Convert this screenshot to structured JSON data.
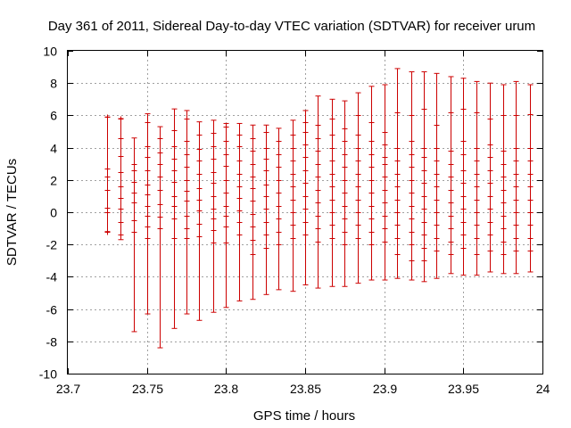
{
  "chart_data": {
    "type": "scatter",
    "title": "Day 361 of 2011, Sidereal Day-to-day VTEC variation (SDTVAR) for receiver urum",
    "xlabel": "GPS time / hours",
    "ylabel": "SDTVAR / TECUs",
    "xlim": [
      23.7,
      24.0
    ],
    "ylim": [
      -10,
      10
    ],
    "x_ticks": [
      "23.7",
      "23.75",
      "23.8",
      "23.85",
      "23.9",
      "23.95",
      "24"
    ],
    "x_tick_values": [
      23.7,
      23.75,
      23.8,
      23.85,
      23.9,
      23.95,
      24.0
    ],
    "y_ticks": [
      "-10",
      "-8",
      "-6",
      "-4",
      "-2",
      "0",
      "2",
      "4",
      "6",
      "8",
      "10"
    ],
    "y_tick_values": [
      -10,
      -8,
      -6,
      -4,
      -2,
      0,
      2,
      4,
      6,
      8,
      10
    ],
    "grid": true,
    "color": "#cc0000",
    "series": [
      {
        "name": "SDTVAR",
        "points": [
          {
            "x": 23.725,
            "lo": -1.2,
            "hi": 5.9,
            "vals": [
              -1.2,
              0.0,
              0.3,
              1.4,
              2.2,
              2.7,
              5.9
            ]
          },
          {
            "x": 23.733,
            "lo": -1.7,
            "hi": 5.8,
            "vals": [
              -1.4,
              -0.6,
              0.2,
              0.9,
              1.6,
              2.5,
              3.5,
              4.6,
              5.8
            ]
          },
          {
            "x": 23.742,
            "lo": -7.4,
            "hi": 4.6,
            "vals": [
              -1.2,
              -0.5,
              0.6,
              1.2,
              1.9,
              2.6,
              3.0
            ]
          },
          {
            "x": 23.75,
            "lo": -6.3,
            "hi": 6.1,
            "vals": [
              -1.6,
              -0.9,
              -0.2,
              0.4,
              1.1,
              1.7,
              2.6,
              3.4,
              4.1,
              5.6
            ]
          },
          {
            "x": 23.758,
            "lo": -8.4,
            "hi": 5.3,
            "vals": [
              -1.0,
              -0.3,
              0.5,
              1.4,
              2.2,
              3.0,
              3.7,
              4.6
            ]
          },
          {
            "x": 23.767,
            "lo": -7.2,
            "hi": 6.4,
            "vals": [
              -1.6,
              -0.4,
              0.4,
              1.0,
              1.9,
              2.6,
              3.3,
              4.1,
              5.1
            ]
          },
          {
            "x": 23.775,
            "lo": -6.3,
            "hi": 6.3,
            "vals": [
              -1.6,
              -1.0,
              -0.2,
              0.7,
              1.3,
              2.0,
              2.8,
              3.6,
              4.4,
              5.8
            ]
          },
          {
            "x": 23.783,
            "lo": -6.7,
            "hi": 5.6,
            "vals": [
              -1.5,
              -0.7,
              0.1,
              0.8,
              1.5,
              2.4,
              3.2,
              3.9,
              4.8
            ]
          },
          {
            "x": 23.792,
            "lo": -6.2,
            "hi": 5.7,
            "vals": [
              -1.9,
              -1.1,
              -0.4,
              0.2,
              1.0,
              1.8,
              2.5,
              3.3,
              4.1,
              4.9
            ]
          },
          {
            "x": 23.8,
            "lo": -5.9,
            "hi": 5.5,
            "vals": [
              -1.9,
              -0.9,
              -0.2,
              0.4,
              1.2,
              2.0,
              2.9,
              3.6,
              4.4,
              5.3
            ]
          },
          {
            "x": 23.808,
            "lo": -5.5,
            "hi": 5.5,
            "vals": [
              -1.4,
              -0.6,
              0.1,
              0.9,
              1.6,
              2.4,
              3.2,
              4.1,
              4.8
            ]
          },
          {
            "x": 23.817,
            "lo": -5.4,
            "hi": 5.4,
            "vals": [
              -2.6,
              -1.7,
              -0.9,
              -0.1,
              0.7,
              1.5,
              2.2,
              3.0,
              3.8,
              4.6
            ]
          },
          {
            "x": 23.825,
            "lo": -5.1,
            "hi": 5.4,
            "vals": [
              -2.2,
              -1.4,
              -0.6,
              0.2,
              1.0,
              1.7,
              2.6,
              3.3,
              4.0,
              5.0
            ]
          },
          {
            "x": 23.833,
            "lo": -4.8,
            "hi": 5.2,
            "vals": [
              -2.0,
              -1.2,
              -0.4,
              0.4,
              1.2,
              2.0,
              2.8,
              3.6,
              4.4
            ]
          },
          {
            "x": 23.842,
            "lo": -4.9,
            "hi": 5.7,
            "vals": [
              -1.6,
              -0.8,
              0.0,
              0.8,
              1.6,
              2.4,
              3.2,
              4.0,
              4.8
            ]
          },
          {
            "x": 23.85,
            "lo": -4.5,
            "hi": 6.3,
            "vals": [
              -1.4,
              -0.6,
              0.2,
              1.0,
              1.8,
              2.6,
              3.4,
              4.2,
              5.0,
              5.6
            ]
          },
          {
            "x": 23.858,
            "lo": -4.7,
            "hi": 7.2,
            "vals": [
              -1.8,
              -1.0,
              -0.2,
              0.6,
              1.4,
              2.2,
              3.0,
              3.8,
              4.6,
              5.4
            ]
          },
          {
            "x": 23.867,
            "lo": -4.6,
            "hi": 7.0,
            "vals": [
              -1.6,
              -0.8,
              0.0,
              0.8,
              1.6,
              2.4,
              3.2,
              4.0,
              4.8,
              5.8
            ]
          },
          {
            "x": 23.875,
            "lo": -4.6,
            "hi": 6.9,
            "vals": [
              -2.0,
              -1.2,
              -0.4,
              0.4,
              1.2,
              2.0,
              2.8,
              3.6,
              4.4,
              5.2
            ]
          },
          {
            "x": 23.883,
            "lo": -4.4,
            "hi": 7.4,
            "vals": [
              -1.6,
              -0.8,
              0.0,
              0.8,
              1.6,
              2.4,
              3.2,
              4.0,
              4.8,
              6.0
            ]
          },
          {
            "x": 23.892,
            "lo": -4.2,
            "hi": 7.8,
            "vals": [
              -2.0,
              -1.2,
              -0.4,
              0.4,
              1.2,
              2.0,
              2.8,
              3.6,
              4.4,
              5.6
            ]
          },
          {
            "x": 23.9,
            "lo": -4.2,
            "hi": 7.9,
            "vals": [
              -1.8,
              -1.0,
              -0.2,
              0.6,
              1.4,
              2.2,
              3.0,
              3.4,
              4.2,
              5.0
            ]
          },
          {
            "x": 23.908,
            "lo": -4.1,
            "hi": 8.9,
            "vals": [
              -2.6,
              -1.6,
              -0.8,
              0.0,
              0.8,
              1.6,
              2.4,
              3.2,
              4.0,
              6.2
            ]
          },
          {
            "x": 23.917,
            "lo": -4.2,
            "hi": 8.7,
            "vals": [
              -3.0,
              -2.0,
              -1.2,
              -0.4,
              0.4,
              1.2,
              2.0,
              2.8,
              3.6,
              4.4,
              6.0
            ]
          },
          {
            "x": 23.925,
            "lo": -4.3,
            "hi": 8.7,
            "vals": [
              -3.0,
              -2.2,
              -1.4,
              -0.6,
              0.2,
              1.0,
              1.8,
              2.6,
              3.4,
              4.0,
              6.4
            ]
          },
          {
            "x": 23.933,
            "lo": -4.1,
            "hi": 8.6,
            "vals": [
              -2.4,
              -1.6,
              -0.8,
              0.0,
              0.8,
              1.6,
              2.4,
              3.2,
              4.0,
              5.4
            ]
          },
          {
            "x": 23.942,
            "lo": -3.8,
            "hi": 8.4,
            "vals": [
              -2.6,
              -1.8,
              -1.0,
              -0.2,
              0.6,
              1.4,
              2.2,
              3.0,
              3.8,
              6.2
            ]
          },
          {
            "x": 23.95,
            "lo": -3.9,
            "hi": 8.3,
            "vals": [
              -2.2,
              -1.4,
              -0.6,
              0.2,
              1.0,
              1.8,
              2.6,
              3.6,
              4.4,
              6.4
            ]
          },
          {
            "x": 23.958,
            "lo": -3.9,
            "hi": 8.1,
            "vals": [
              -2.6,
              -1.6,
              -0.8,
              0.0,
              0.8,
              1.6,
              2.4,
              3.2,
              4.0,
              6.2
            ]
          },
          {
            "x": 23.967,
            "lo": -3.7,
            "hi": 8.0,
            "vals": [
              -2.4,
              -1.4,
              -0.6,
              0.2,
              1.0,
              1.8,
              2.6,
              3.4,
              4.2,
              5.8
            ]
          },
          {
            "x": 23.975,
            "lo": -3.8,
            "hi": 7.9,
            "vals": [
              -2.6,
              -1.8,
              -1.0,
              -0.2,
              0.6,
              1.4,
              2.2,
              3.0,
              3.8,
              6.0
            ]
          },
          {
            "x": 23.983,
            "lo": -3.8,
            "hi": 8.1,
            "vals": [
              -2.4,
              -1.6,
              -0.8,
              0.0,
              0.8,
              1.6,
              2.4,
              3.2,
              4.0,
              6.0
            ]
          },
          {
            "x": 23.992,
            "lo": -3.7,
            "hi": 7.9,
            "vals": [
              -2.4,
              -1.6,
              -0.8,
              0.0,
              0.8,
              1.6,
              2.4,
              3.2,
              4.0,
              6.1
            ]
          }
        ]
      }
    ]
  }
}
